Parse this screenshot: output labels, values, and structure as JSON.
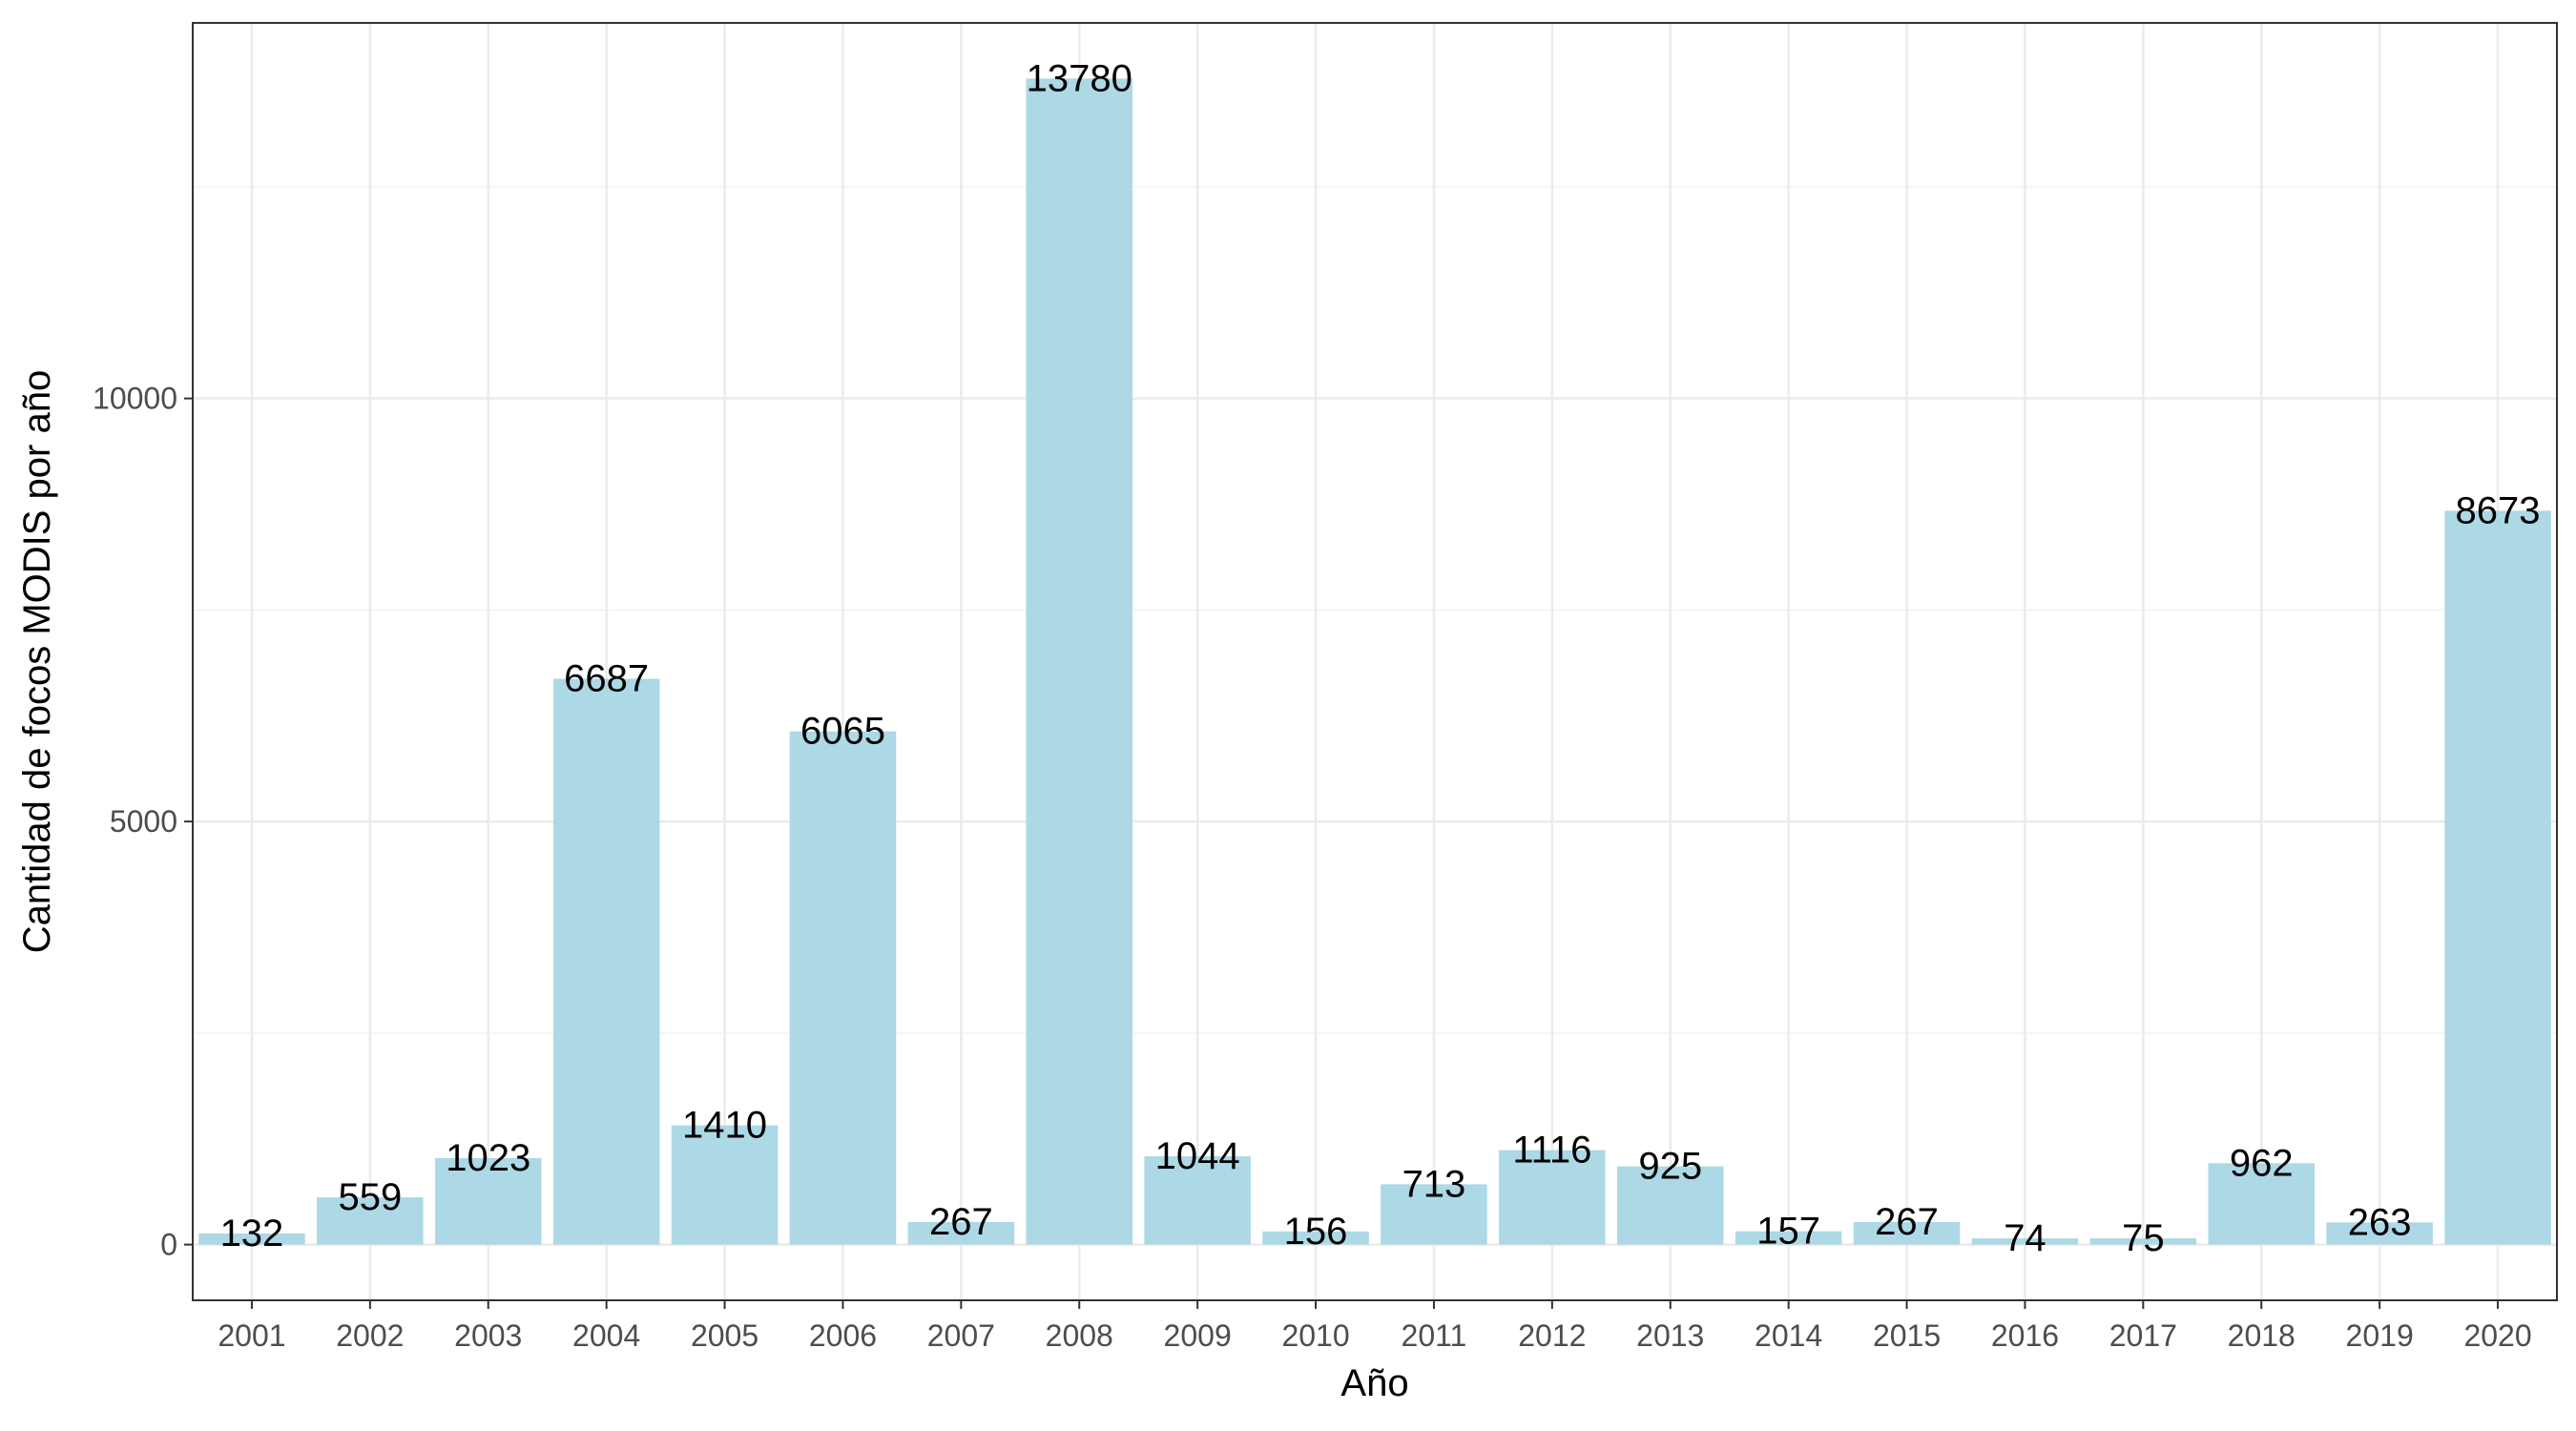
{
  "chart_data": {
    "type": "bar",
    "title": "",
    "xlabel": "Año",
    "ylabel": "Cantidad de focos MODIS por año",
    "categories": [
      "2001",
      "2002",
      "2003",
      "2004",
      "2005",
      "2006",
      "2007",
      "2008",
      "2009",
      "2010",
      "2011",
      "2012",
      "2013",
      "2014",
      "2015",
      "2016",
      "2017",
      "2018",
      "2019",
      "2020"
    ],
    "values": [
      132,
      559,
      1023,
      6687,
      1410,
      6065,
      267,
      13780,
      1044,
      156,
      713,
      1116,
      925,
      157,
      267,
      74,
      75,
      962,
      263,
      8673
    ],
    "data_labels": [
      "132",
      "559",
      "1023",
      "6687",
      "1410",
      "6065",
      "267",
      "13780",
      "1044",
      "156",
      "713",
      "1116",
      "925",
      "157",
      "267",
      "74",
      "75",
      "962",
      "263",
      "8673"
    ],
    "y_ticks": [
      0,
      5000,
      10000
    ],
    "y_tick_labels": [
      "0",
      "5000",
      "10000"
    ],
    "ylim": [
      -658.05,
      14438.05
    ],
    "grid": true,
    "legend": "none",
    "colors": {
      "bar": "#ADD8E6",
      "panel_border": "#333333",
      "grid_major": "#EBEBEB",
      "grid_minor": "#F3F3F3",
      "tick_text": "#4D4D4D",
      "title_text": "#000000"
    }
  }
}
